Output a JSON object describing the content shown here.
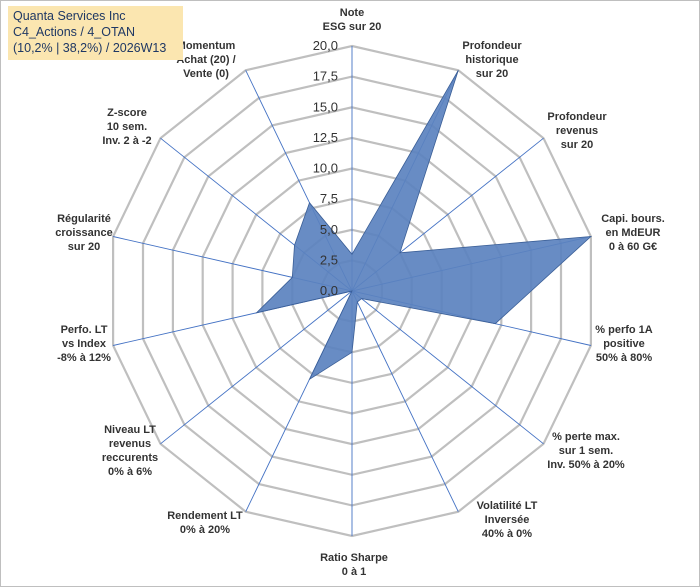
{
  "title_box": {
    "line1": "Quanta Services Inc",
    "line2": "C4_Actions / 4_OTAN",
    "line3": "(10,2% | 38,2%) / 2026W13"
  },
  "chart_data": {
    "type": "radar",
    "title": "Quanta Services Inc",
    "rlim": [
      0,
      20
    ],
    "ticks": [
      0,
      2.5,
      5,
      7.5,
      10,
      12.5,
      15,
      17.5,
      20
    ],
    "tick_labels": [
      "0,0",
      "2,5",
      "5,0",
      "7,5",
      "10,0",
      "12,5",
      "15,0",
      "17,5",
      "20,0"
    ],
    "categories": [
      [
        "Note",
        "ESG sur 20"
      ],
      [
        "Profondeur",
        "historique",
        "sur 20"
      ],
      [
        "Profondeur",
        "revenus",
        "sur 20"
      ],
      [
        "Capi. bours.",
        "en MdEUR",
        "0 à 60 G€"
      ],
      [
        "% perfo 1A",
        "positive",
        "50% à 80%"
      ],
      [
        "% perte max.",
        "sur 1 sem.",
        "Inv. 50% à 20%"
      ],
      [
        "Volatilité LT",
        "Inversée",
        "40% à 0%"
      ],
      [
        "Ratio Sharpe",
        "0 à 1"
      ],
      [
        "Rendement LT",
        "0% à 20%"
      ],
      [
        "Niveau LT",
        "revenus",
        "reccurents",
        "0% à 6%"
      ],
      [
        "Perfo. LT",
        "vs Index",
        "-8% à 12%"
      ],
      [
        "Régularité",
        "croissance",
        "sur 20"
      ],
      [
        "Z-score",
        "10 sem.",
        "Inv. 2 à -2"
      ],
      [
        "Momentum",
        "Achat (20) /",
        "Vente (0)"
      ]
    ],
    "series": [
      {
        "name": "Quanta Services Inc",
        "values": [
          3.0,
          20.0,
          5.0,
          20.0,
          12.0,
          1.0,
          1.0,
          5.0,
          8.0,
          0.0,
          8.0,
          5.0,
          6.0,
          8.0
        ],
        "color": "#5b82bf"
      }
    ],
    "colors": {
      "grid": "#bfbfbf",
      "spoke": "#4472c4",
      "fill": "#5b82bf",
      "stroke": "#3a5e96"
    }
  }
}
